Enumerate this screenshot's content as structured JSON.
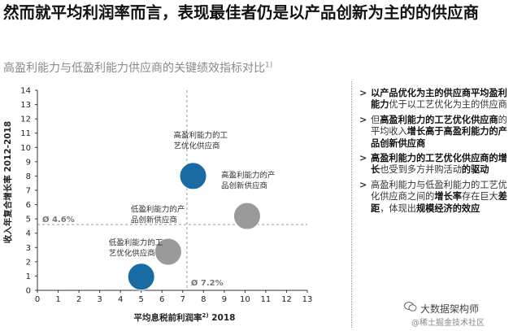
{
  "title": "然而就平均利润率而言，表现最佳者仍是以产品创新为主的的供应商",
  "subtitle": "高盈利能力与低盈利能力供应商的关键绩效指标对比",
  "subtitle_sup": "1)",
  "bullets": [
    [
      {
        "t": "以产品优化为主的供应商平均盈利能力",
        "b": true
      },
      {
        "t": "优于以工艺优化为主的供应商",
        "b": false
      }
    ],
    [
      {
        "t": "但",
        "b": false
      },
      {
        "t": "高盈利能力的工艺优化供应商",
        "b": true
      },
      {
        "t": "的平均收入",
        "b": false
      },
      {
        "t": "增长高于高盈利能力的产品创新供应商",
        "b": true
      }
    ],
    [
      {
        "t": "高盈利能力的工艺优化供应商的增长",
        "b": true
      },
      {
        "t": "也受到多方并购活动",
        "b": false
      },
      {
        "t": "的驱动",
        "b": true
      }
    ],
    [
      {
        "t": "高盈利能力与低盈利能力的工艺优化供应商之间的",
        "b": false
      },
      {
        "t": "增长率",
        "b": true
      },
      {
        "t": "存在巨大",
        "b": false
      },
      {
        "t": "差距",
        "b": true
      },
      {
        "t": "，体现出",
        "b": false
      },
      {
        "t": "规模经济的效应",
        "b": true
      }
    ]
  ],
  "watermark": {
    "line1": "大数据架构师",
    "line2": "@稀土掘金技术社区"
  },
  "colors": {
    "dark_blue": "#1a6aa3",
    "grey": "#9a9a9a",
    "text": "#333333"
  },
  "chart_data": {
    "type": "scatter",
    "xlabel": "平均息税前利润率",
    "xlabel_sup": "2)",
    "xlabel_suffix": " 2018",
    "ylabel": "收入年复合增长率 2012-2018",
    "xlim": [
      0,
      13
    ],
    "ylim": [
      0,
      14
    ],
    "xticks": [
      "0",
      "1",
      "2",
      "3",
      "4",
      "5",
      "6",
      "7",
      "8",
      "9",
      "10",
      "11",
      "12",
      "13"
    ],
    "yticks": [
      "0",
      "1",
      "2",
      "3",
      "4",
      "5",
      "6",
      "7",
      "8",
      "9",
      "10",
      "11",
      "12",
      "13",
      "14"
    ],
    "reference_lines": [
      {
        "axis": "x",
        "value": 7.2,
        "label": "Ø 7.2%"
      },
      {
        "axis": "y",
        "value": 4.6,
        "label": "Ø 4.6%"
      }
    ],
    "points": [
      {
        "x": 7.5,
        "y": 8.0,
        "group": "process",
        "label": [
          "高盈利能力的工",
          "艺优化供应商"
        ],
        "color": "#1a6aa3"
      },
      {
        "x": 10.1,
        "y": 5.2,
        "group": "product",
        "label": [
          "高盈利能力的产",
          "品创新供应商"
        ],
        "color": "#9a9a9a"
      },
      {
        "x": 6.3,
        "y": 2.7,
        "group": "product",
        "label": [
          "低盈利能力的产",
          "品创新供应商"
        ],
        "color": "#9a9a9a"
      },
      {
        "x": 5.0,
        "y": 0.95,
        "group": "process",
        "label": [
          "低盈利能力的工",
          "艺优化供应商"
        ],
        "color": "#1a6aa3"
      }
    ]
  }
}
